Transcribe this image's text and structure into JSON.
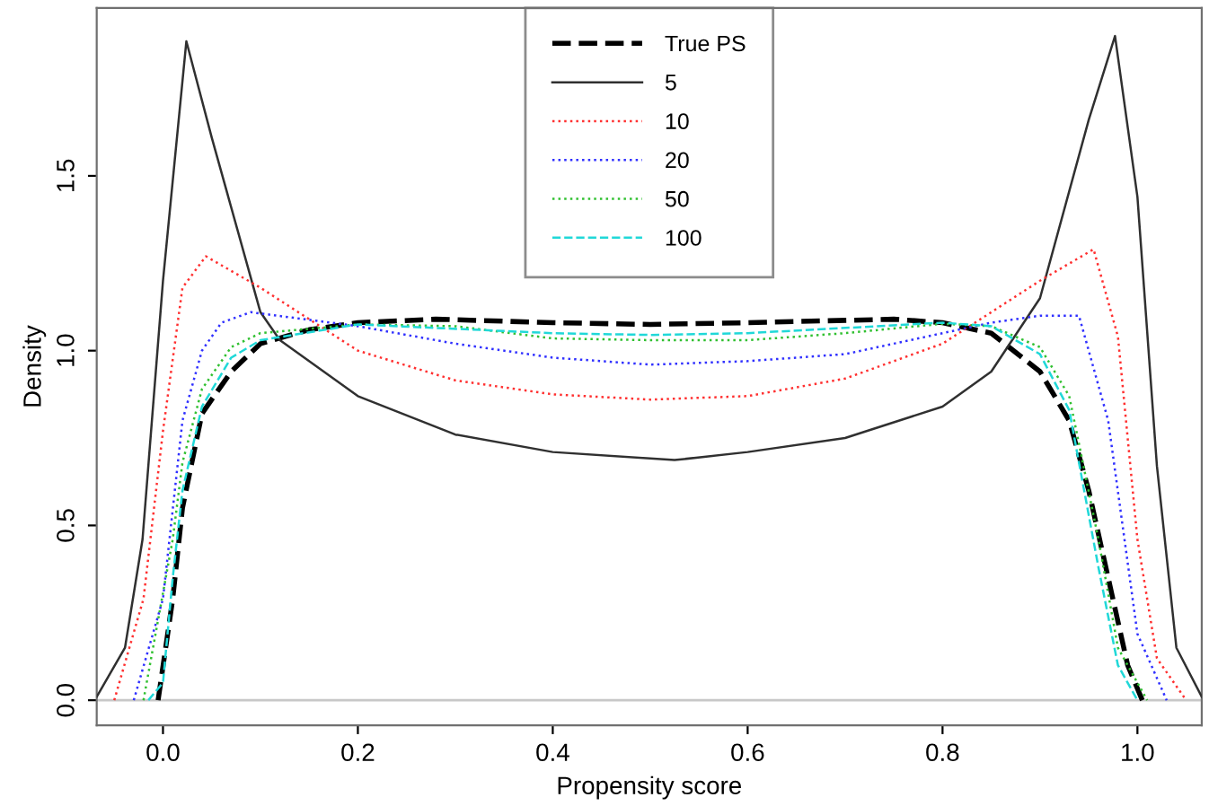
{
  "chart_data": {
    "type": "line",
    "xlabel": "Propensity score",
    "ylabel": "Density",
    "xlim": [
      -0.068,
      1.066
    ],
    "ylim": [
      -0.072,
      1.98
    ],
    "xticks": [
      {
        "value": 0,
        "label": "0.0"
      },
      {
        "value": 0.2,
        "label": "0.2"
      },
      {
        "value": 0.4,
        "label": "0.4"
      },
      {
        "value": 0.6,
        "label": "0.6"
      },
      {
        "value": 0.8,
        "label": "0.8"
      },
      {
        "value": 1,
        "label": "1.0"
      }
    ],
    "yticks": [
      {
        "value": 0,
        "label": "0.0"
      },
      {
        "value": 0.5,
        "label": "0.5"
      },
      {
        "value": 1,
        "label": "1.0"
      },
      {
        "value": 1.5,
        "label": "1.5"
      }
    ],
    "grid": false,
    "legend": "top",
    "marker": "none",
    "ref_lines": [
      {
        "axis": "y",
        "value": 0,
        "color": "#c8c8c8",
        "line_style": "solid"
      }
    ],
    "series": [
      {
        "name": "True PS",
        "color": "#000000",
        "line_style": "dashed",
        "x": [
          -0.005,
          0.01,
          0.02,
          0.04,
          0.07,
          0.1,
          0.15,
          0.2,
          0.28,
          0.4,
          0.5,
          0.6,
          0.75,
          0.8,
          0.85,
          0.9,
          0.93,
          0.95,
          0.97,
          0.99,
          1.005
        ],
        "values": [
          0,
          0.29,
          0.55,
          0.82,
          0.94,
          1.02,
          1.06,
          1.08,
          1.09,
          1.08,
          1.075,
          1.08,
          1.09,
          1.08,
          1.05,
          0.94,
          0.8,
          0.6,
          0.35,
          0.1,
          0
        ]
      },
      {
        "name": "5",
        "color": "#303030",
        "line_style": "solid",
        "x": [
          -0.068,
          -0.039,
          -0.021,
          0,
          0.024,
          0.05,
          0.1,
          0.12,
          0.2,
          0.3,
          0.4,
          0.525,
          0.6,
          0.7,
          0.8,
          0.85,
          0.9,
          0.95,
          0.977,
          1.0,
          1.02,
          1.04,
          1.066
        ],
        "values": [
          0.01,
          0.15,
          0.46,
          1.2,
          1.885,
          1.61,
          1.11,
          1.03,
          0.87,
          0.76,
          0.71,
          0.687,
          0.71,
          0.75,
          0.84,
          0.94,
          1.15,
          1.66,
          1.9,
          1.44,
          0.67,
          0.15,
          0.01
        ]
      },
      {
        "name": "10",
        "color": "#ff3030",
        "line_style": "dotted",
        "x": [
          -0.05,
          -0.02,
          0,
          0.02,
          0.044,
          0.1,
          0.2,
          0.3,
          0.4,
          0.5,
          0.6,
          0.7,
          0.8,
          0.9,
          0.955,
          0.98,
          1.0,
          1.02,
          1.05
        ],
        "values": [
          0,
          0.29,
          0.77,
          1.18,
          1.27,
          1.18,
          1.0,
          0.915,
          0.875,
          0.86,
          0.87,
          0.92,
          1.02,
          1.2,
          1.29,
          1.04,
          0.46,
          0.12,
          0
        ]
      },
      {
        "name": "20",
        "color": "#3030ff",
        "line_style": "dotted",
        "x": [
          -0.03,
          0,
          0.02,
          0.04,
          0.06,
          0.09,
          0.2,
          0.3,
          0.4,
          0.5,
          0.6,
          0.7,
          0.8,
          0.85,
          0.9,
          0.94,
          0.97,
          1.0,
          1.03
        ],
        "values": [
          0,
          0.29,
          0.8,
          1.0,
          1.08,
          1.11,
          1.07,
          1.02,
          0.98,
          0.96,
          0.97,
          0.99,
          1.05,
          1.08,
          1.1,
          1.1,
          0.8,
          0.19,
          0
        ]
      },
      {
        "name": "50",
        "color": "#30c030",
        "line_style": "dotted",
        "x": [
          -0.02,
          0.01,
          0.02,
          0.04,
          0.07,
          0.1,
          0.2,
          0.3,
          0.4,
          0.5,
          0.6,
          0.7,
          0.8,
          0.85,
          0.9,
          0.93,
          0.96,
          0.98,
          1.01
        ],
        "values": [
          0,
          0.46,
          0.68,
          0.89,
          1.01,
          1.05,
          1.075,
          1.07,
          1.035,
          1.03,
          1.03,
          1.05,
          1.077,
          1.07,
          1.01,
          0.87,
          0.46,
          0.15,
          0
        ]
      },
      {
        "name": "100",
        "color": "#20d8d8",
        "line_style": "dashed",
        "x": [
          -0.015,
          0,
          0.01,
          0.02,
          0.04,
          0.07,
          0.1,
          0.2,
          0.4,
          0.5,
          0.6,
          0.8,
          0.85,
          0.9,
          0.93,
          0.96,
          0.98,
          1.0
        ],
        "values": [
          0,
          0.05,
          0.35,
          0.6,
          0.84,
          0.98,
          1.03,
          1.075,
          1.05,
          1.045,
          1.05,
          1.08,
          1.07,
          0.99,
          0.83,
          0.38,
          0.1,
          0
        ]
      }
    ]
  }
}
